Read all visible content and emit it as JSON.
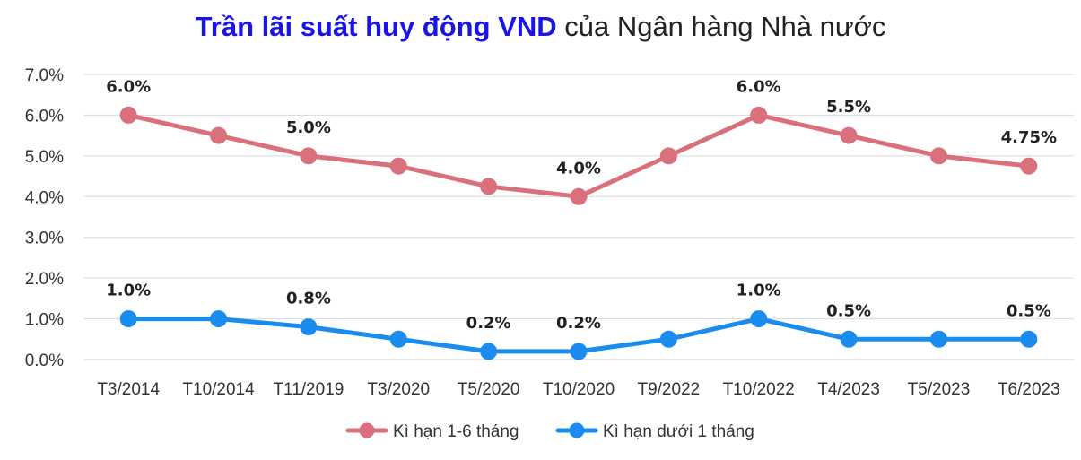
{
  "chart_data": {
    "type": "line",
    "title_highlight": "Trần lãi suất huy động VND",
    "title_rest": " của Ngân hàng Nhà nước",
    "title_color": "#1a14e6",
    "categories": [
      "T3/2014",
      "T10/2014",
      "T11/2019",
      "T3/2020",
      "T5/2020",
      "T10/2020",
      "T9/2022",
      "T10/2022",
      "T4/2023",
      "T5/2023",
      "T6/2023"
    ],
    "ylim": [
      0,
      7
    ],
    "yticks": [
      "0.0%",
      "1.0%",
      "2.0%",
      "3.0%",
      "4.0%",
      "5.0%",
      "6.0%",
      "7.0%"
    ],
    "grid": true,
    "legend_position": "bottom",
    "series": [
      {
        "name": "Kì hạn 1-6 tháng",
        "color": "#d9707b",
        "values": [
          6.0,
          5.5,
          5.0,
          4.75,
          4.25,
          4.0,
          5.0,
          6.0,
          5.5,
          5.0,
          4.75
        ],
        "labels": [
          "6.0%",
          "",
          "5.0%",
          "",
          "",
          "4.0%",
          "",
          "6.0%",
          "5.5%",
          "",
          "4.75%"
        ]
      },
      {
        "name": "Kì hạn dưới 1 tháng",
        "color": "#1a8cf0",
        "values": [
          1.0,
          1.0,
          0.8,
          0.5,
          0.2,
          0.2,
          0.5,
          1.0,
          0.5,
          0.5,
          0.5
        ],
        "labels": [
          "1.0%",
          "",
          "0.8%",
          "",
          "0.2%",
          "0.2%",
          "",
          "1.0%",
          "0.5%",
          "",
          "0.5%"
        ]
      }
    ]
  }
}
